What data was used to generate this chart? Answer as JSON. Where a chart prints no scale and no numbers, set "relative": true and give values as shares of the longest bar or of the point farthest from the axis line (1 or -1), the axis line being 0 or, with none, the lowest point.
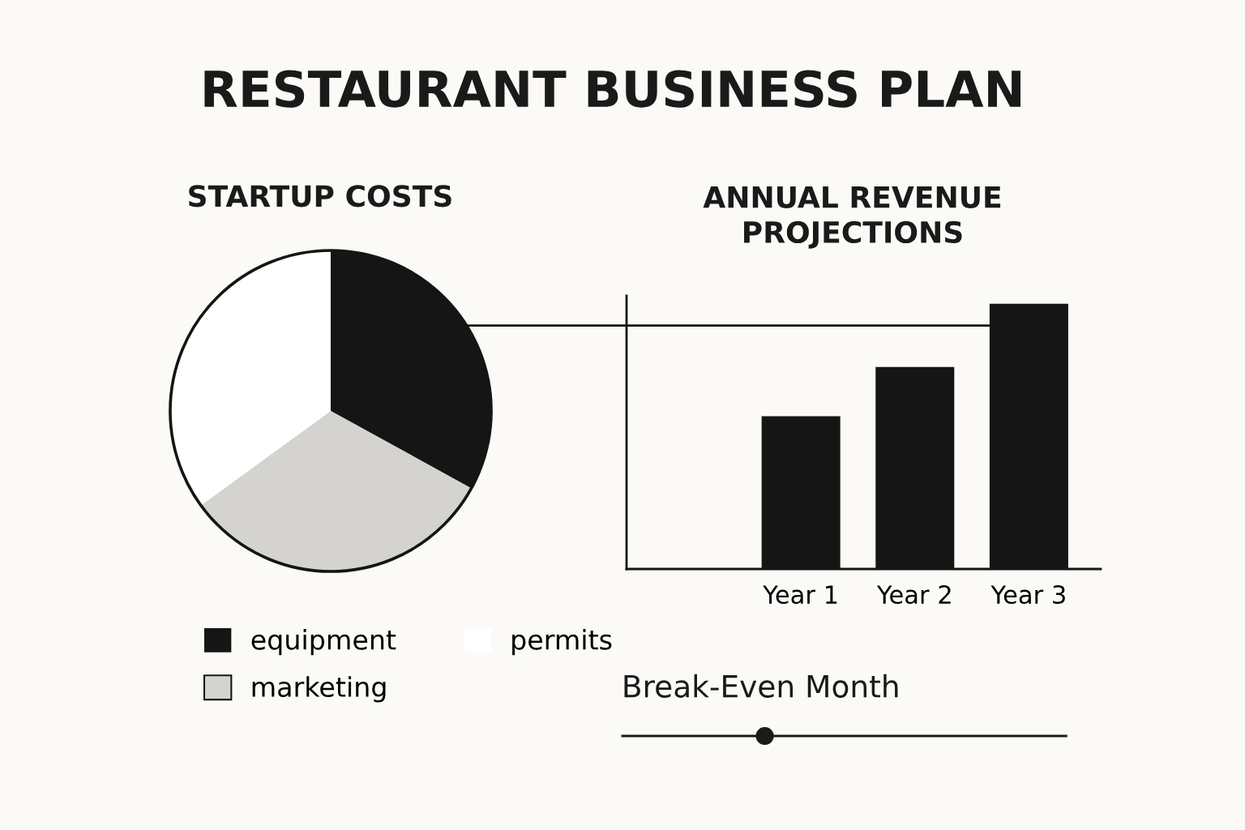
{
  "chart_data": [
    {
      "type": "other",
      "title": "RESTAURANT BUSINESS PLAN"
    },
    {
      "type": "pie",
      "title": "STARTUP COSTS",
      "categories": [
        "equipment",
        "marketing",
        "permits"
      ],
      "values": [
        33,
        32,
        35
      ],
      "colors": [
        "#151515",
        "#d4d3cf",
        "#ffffff"
      ],
      "legend": "bottom"
    },
    {
      "type": "bar",
      "title": "ANNUAL REVENUE PROJECTIONS",
      "categories": [
        "Year 1",
        "Year 2",
        "Year 3"
      ],
      "values": [
        0.576,
        0.762,
        1
      ],
      "color": "#151515",
      "relative": true,
      "ref_lines": [
        {
          "axis": "y",
          "value": 0.918,
          "color": "#151515"
        }
      ]
    },
    {
      "type": "other",
      "title": "Break-Even Month"
    }
  ]
}
